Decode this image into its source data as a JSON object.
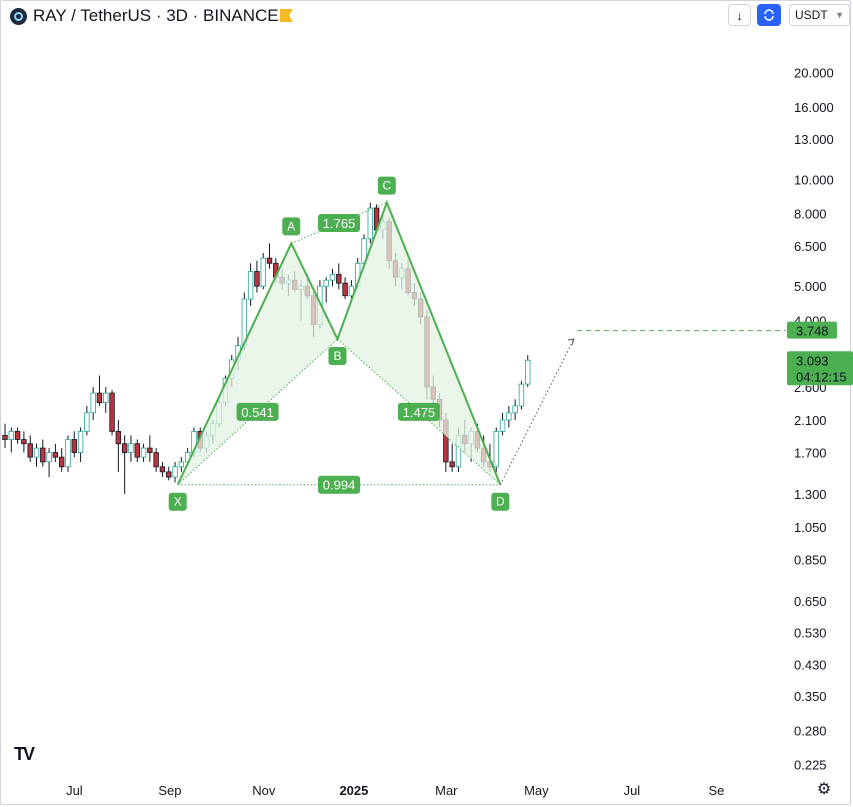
{
  "header": {
    "symbol": "RAY / TetherUS · 3D · BINANCE",
    "currency": "USDT",
    "download_icon": "arrow-down-icon",
    "sync_icon": "sync-icon"
  },
  "branding": {
    "logo": "TV"
  },
  "colors": {
    "pattern": "#4caf50",
    "fill": "#e4f3e4",
    "up": "#26a69a",
    "down": "#b8343f",
    "target": "#4caf50"
  },
  "chart_data": {
    "type": "candlestick",
    "scale": "log",
    "ylim": [
      0.21,
      26
    ],
    "y_ticks": [
      "20.000",
      "16.000",
      "13.000",
      "10.000",
      "8.000",
      "6.500",
      "5.000",
      "4.000",
      "2.600",
      "2.100",
      "1.700",
      "1.300",
      "1.050",
      "0.850",
      "0.650",
      "0.530",
      "0.430",
      "0.350",
      "0.280",
      "0.225"
    ],
    "x_ticks": [
      {
        "label": "Jul",
        "t": 0.095
      },
      {
        "label": "Sep",
        "t": 0.217
      },
      {
        "label": "Nov",
        "t": 0.337
      },
      {
        "label": "2025",
        "t": 0.452,
        "bold": true
      },
      {
        "label": "Mar",
        "t": 0.57
      },
      {
        "label": "May",
        "t": 0.685
      },
      {
        "label": "Jul",
        "t": 0.807
      },
      {
        "label": "Se",
        "t": 0.915
      }
    ],
    "last_price": "3.093",
    "countdown": "04:12:15",
    "target_price": "3.748",
    "pattern": {
      "name_points": [
        {
          "label": "X",
          "price": 1.38,
          "t": 0.227
        },
        {
          "label": "A",
          "price": 6.6,
          "t": 0.372
        },
        {
          "label": "B",
          "price": 3.55,
          "t": 0.431
        },
        {
          "label": "C",
          "price": 8.6,
          "t": 0.494
        },
        {
          "label": "D",
          "price": 1.38,
          "t": 0.639
        }
      ],
      "ratios": [
        {
          "label": "0.541",
          "between": [
            "X",
            "B"
          ]
        },
        {
          "label": "1.765",
          "between": [
            "A",
            "C"
          ]
        },
        {
          "label": "1.475",
          "between": [
            "B",
            "D"
          ]
        },
        {
          "label": "0.994",
          "between": [
            "X",
            "D"
          ]
        }
      ],
      "projection_end": {
        "price": 3.55,
        "t": 0.733
      }
    },
    "candles": [
      [
        1.9,
        2.05,
        1.75,
        1.85
      ],
      [
        1.85,
        2.0,
        1.7,
        1.95
      ],
      [
        1.95,
        2.0,
        1.8,
        1.85
      ],
      [
        1.85,
        1.95,
        1.7,
        1.8
      ],
      [
        1.8,
        1.9,
        1.6,
        1.65
      ],
      [
        1.65,
        1.8,
        1.55,
        1.75
      ],
      [
        1.75,
        1.85,
        1.55,
        1.6
      ],
      [
        1.6,
        1.75,
        1.45,
        1.7
      ],
      [
        1.7,
        1.8,
        1.6,
        1.65
      ],
      [
        1.65,
        1.75,
        1.5,
        1.55
      ],
      [
        1.55,
        1.9,
        1.5,
        1.85
      ],
      [
        1.85,
        1.95,
        1.65,
        1.7
      ],
      [
        1.7,
        2.0,
        1.6,
        1.95
      ],
      [
        1.95,
        2.3,
        1.9,
        2.2
      ],
      [
        2.2,
        2.6,
        2.1,
        2.5
      ],
      [
        2.5,
        2.8,
        2.3,
        2.35
      ],
      [
        2.35,
        2.6,
        2.2,
        2.5
      ],
      [
        2.5,
        2.55,
        1.9,
        1.95
      ],
      [
        1.95,
        2.1,
        1.5,
        1.8
      ],
      [
        1.8,
        1.9,
        1.3,
        1.7
      ],
      [
        1.7,
        1.9,
        1.6,
        1.8
      ],
      [
        1.8,
        1.85,
        1.6,
        1.65
      ],
      [
        1.65,
        1.8,
        1.6,
        1.75
      ],
      [
        1.75,
        1.9,
        1.6,
        1.7
      ],
      [
        1.7,
        1.75,
        1.5,
        1.55
      ],
      [
        1.55,
        1.6,
        1.45,
        1.5
      ],
      [
        1.5,
        1.55,
        1.42,
        1.45
      ],
      [
        1.45,
        1.6,
        1.4,
        1.55
      ],
      [
        1.55,
        1.65,
        1.5,
        1.6
      ],
      [
        1.6,
        1.75,
        1.55,
        1.7
      ],
      [
        1.7,
        2.0,
        1.65,
        1.95
      ],
      [
        1.95,
        2.0,
        1.7,
        1.75
      ],
      [
        1.75,
        1.95,
        1.7,
        1.9
      ],
      [
        1.9,
        2.1,
        1.8,
        2.05
      ],
      [
        2.05,
        2.4,
        2.0,
        2.35
      ],
      [
        2.35,
        2.8,
        2.3,
        2.75
      ],
      [
        2.75,
        3.2,
        2.6,
        3.1
      ],
      [
        3.1,
        3.6,
        2.9,
        3.4
      ],
      [
        3.4,
        4.8,
        3.3,
        4.6
      ],
      [
        4.6,
        5.8,
        4.4,
        5.5
      ],
      [
        5.5,
        5.9,
        4.8,
        5.0
      ],
      [
        5.0,
        6.2,
        4.9,
        6.0
      ],
      [
        6.0,
        6.6,
        5.6,
        5.8
      ],
      [
        5.8,
        6.0,
        5.1,
        5.3
      ],
      [
        5.3,
        5.6,
        4.9,
        5.1
      ],
      [
        5.1,
        5.4,
        4.7,
        5.2
      ],
      [
        5.2,
        5.5,
        4.8,
        4.9
      ],
      [
        4.9,
        5.2,
        4.0,
        5.0
      ],
      [
        5.0,
        5.4,
        4.6,
        4.7
      ],
      [
        4.7,
        4.9,
        3.6,
        3.9
      ],
      [
        3.9,
        5.2,
        3.8,
        5.0
      ],
      [
        5.0,
        5.3,
        4.5,
        5.2
      ],
      [
        5.2,
        5.6,
        5.0,
        5.4
      ],
      [
        5.4,
        5.8,
        4.9,
        5.1
      ],
      [
        5.1,
        5.3,
        4.6,
        4.7
      ],
      [
        4.7,
        5.2,
        4.5,
        5.0
      ],
      [
        5.0,
        6.0,
        4.9,
        5.8
      ],
      [
        5.8,
        7.0,
        5.6,
        6.8
      ],
      [
        6.8,
        8.6,
        6.6,
        8.3
      ],
      [
        8.3,
        8.5,
        7.0,
        7.2
      ],
      [
        7.2,
        8.0,
        6.8,
        7.6
      ],
      [
        7.6,
        7.8,
        5.6,
        5.9
      ],
      [
        5.9,
        6.2,
        5.0,
        5.3
      ],
      [
        5.3,
        5.8,
        4.9,
        5.6
      ],
      [
        5.6,
        5.9,
        4.7,
        4.8
      ],
      [
        4.8,
        5.1,
        4.4,
        4.6
      ],
      [
        4.6,
        4.8,
        3.9,
        4.1
      ],
      [
        4.1,
        4.3,
        2.4,
        2.6
      ],
      [
        2.6,
        2.8,
        2.2,
        2.4
      ],
      [
        2.4,
        2.5,
        2.0,
        2.1
      ],
      [
        2.1,
        2.2,
        1.5,
        1.6
      ],
      [
        1.6,
        1.8,
        1.5,
        1.55
      ],
      [
        1.55,
        2.0,
        1.5,
        1.9
      ],
      [
        1.9,
        2.1,
        1.7,
        1.8
      ],
      [
        1.8,
        2.0,
        1.6,
        1.95
      ],
      [
        1.95,
        2.05,
        1.7,
        1.75
      ],
      [
        1.75,
        1.9,
        1.55,
        1.6
      ],
      [
        1.6,
        1.8,
        1.5,
        1.55
      ],
      [
        1.55,
        2.0,
        1.5,
        1.95
      ],
      [
        1.95,
        2.2,
        1.9,
        2.1
      ],
      [
        2.1,
        2.3,
        2.0,
        2.2
      ],
      [
        2.2,
        2.4,
        2.1,
        2.3
      ],
      [
        2.3,
        2.7,
        2.25,
        2.65
      ],
      [
        2.65,
        3.2,
        2.6,
        3.093
      ]
    ]
  }
}
